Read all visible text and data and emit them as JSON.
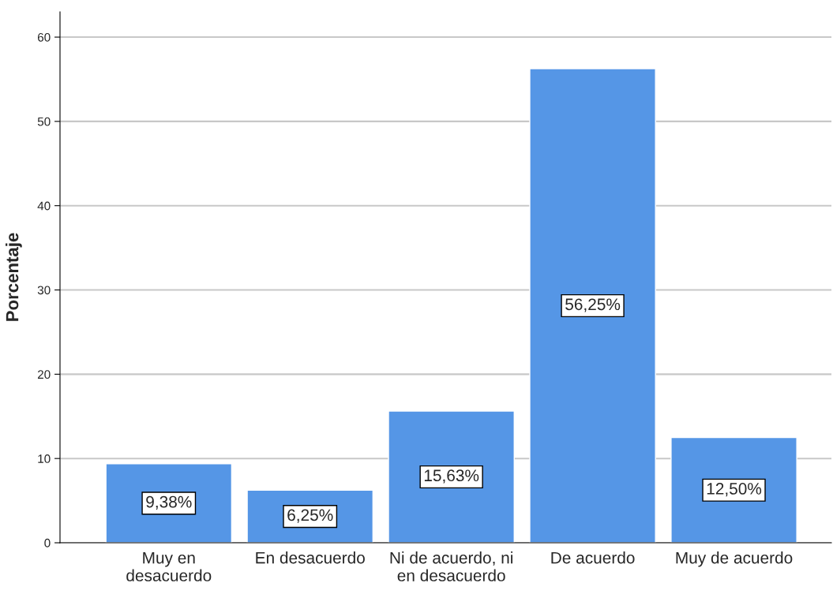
{
  "chart_data": {
    "type": "bar",
    "ylabel": "Porcentaje",
    "categories": [
      "Muy en\ndesacuerdo",
      "En desacuerdo",
      "Ni de acuerdo, ni\nen desacuerdo",
      "De acuerdo",
      "Muy de acuerdo"
    ],
    "values": [
      9.38,
      6.25,
      15.63,
      56.25,
      12.5
    ],
    "value_labels": [
      "9,38%",
      "6,25%",
      "15,63%",
      "56,25%",
      "12,50%"
    ],
    "color": "#5596e6",
    "ylim": [
      0,
      63
    ],
    "yticks": [
      0,
      10,
      20,
      30,
      40,
      50,
      60
    ],
    "grid": "y"
  }
}
